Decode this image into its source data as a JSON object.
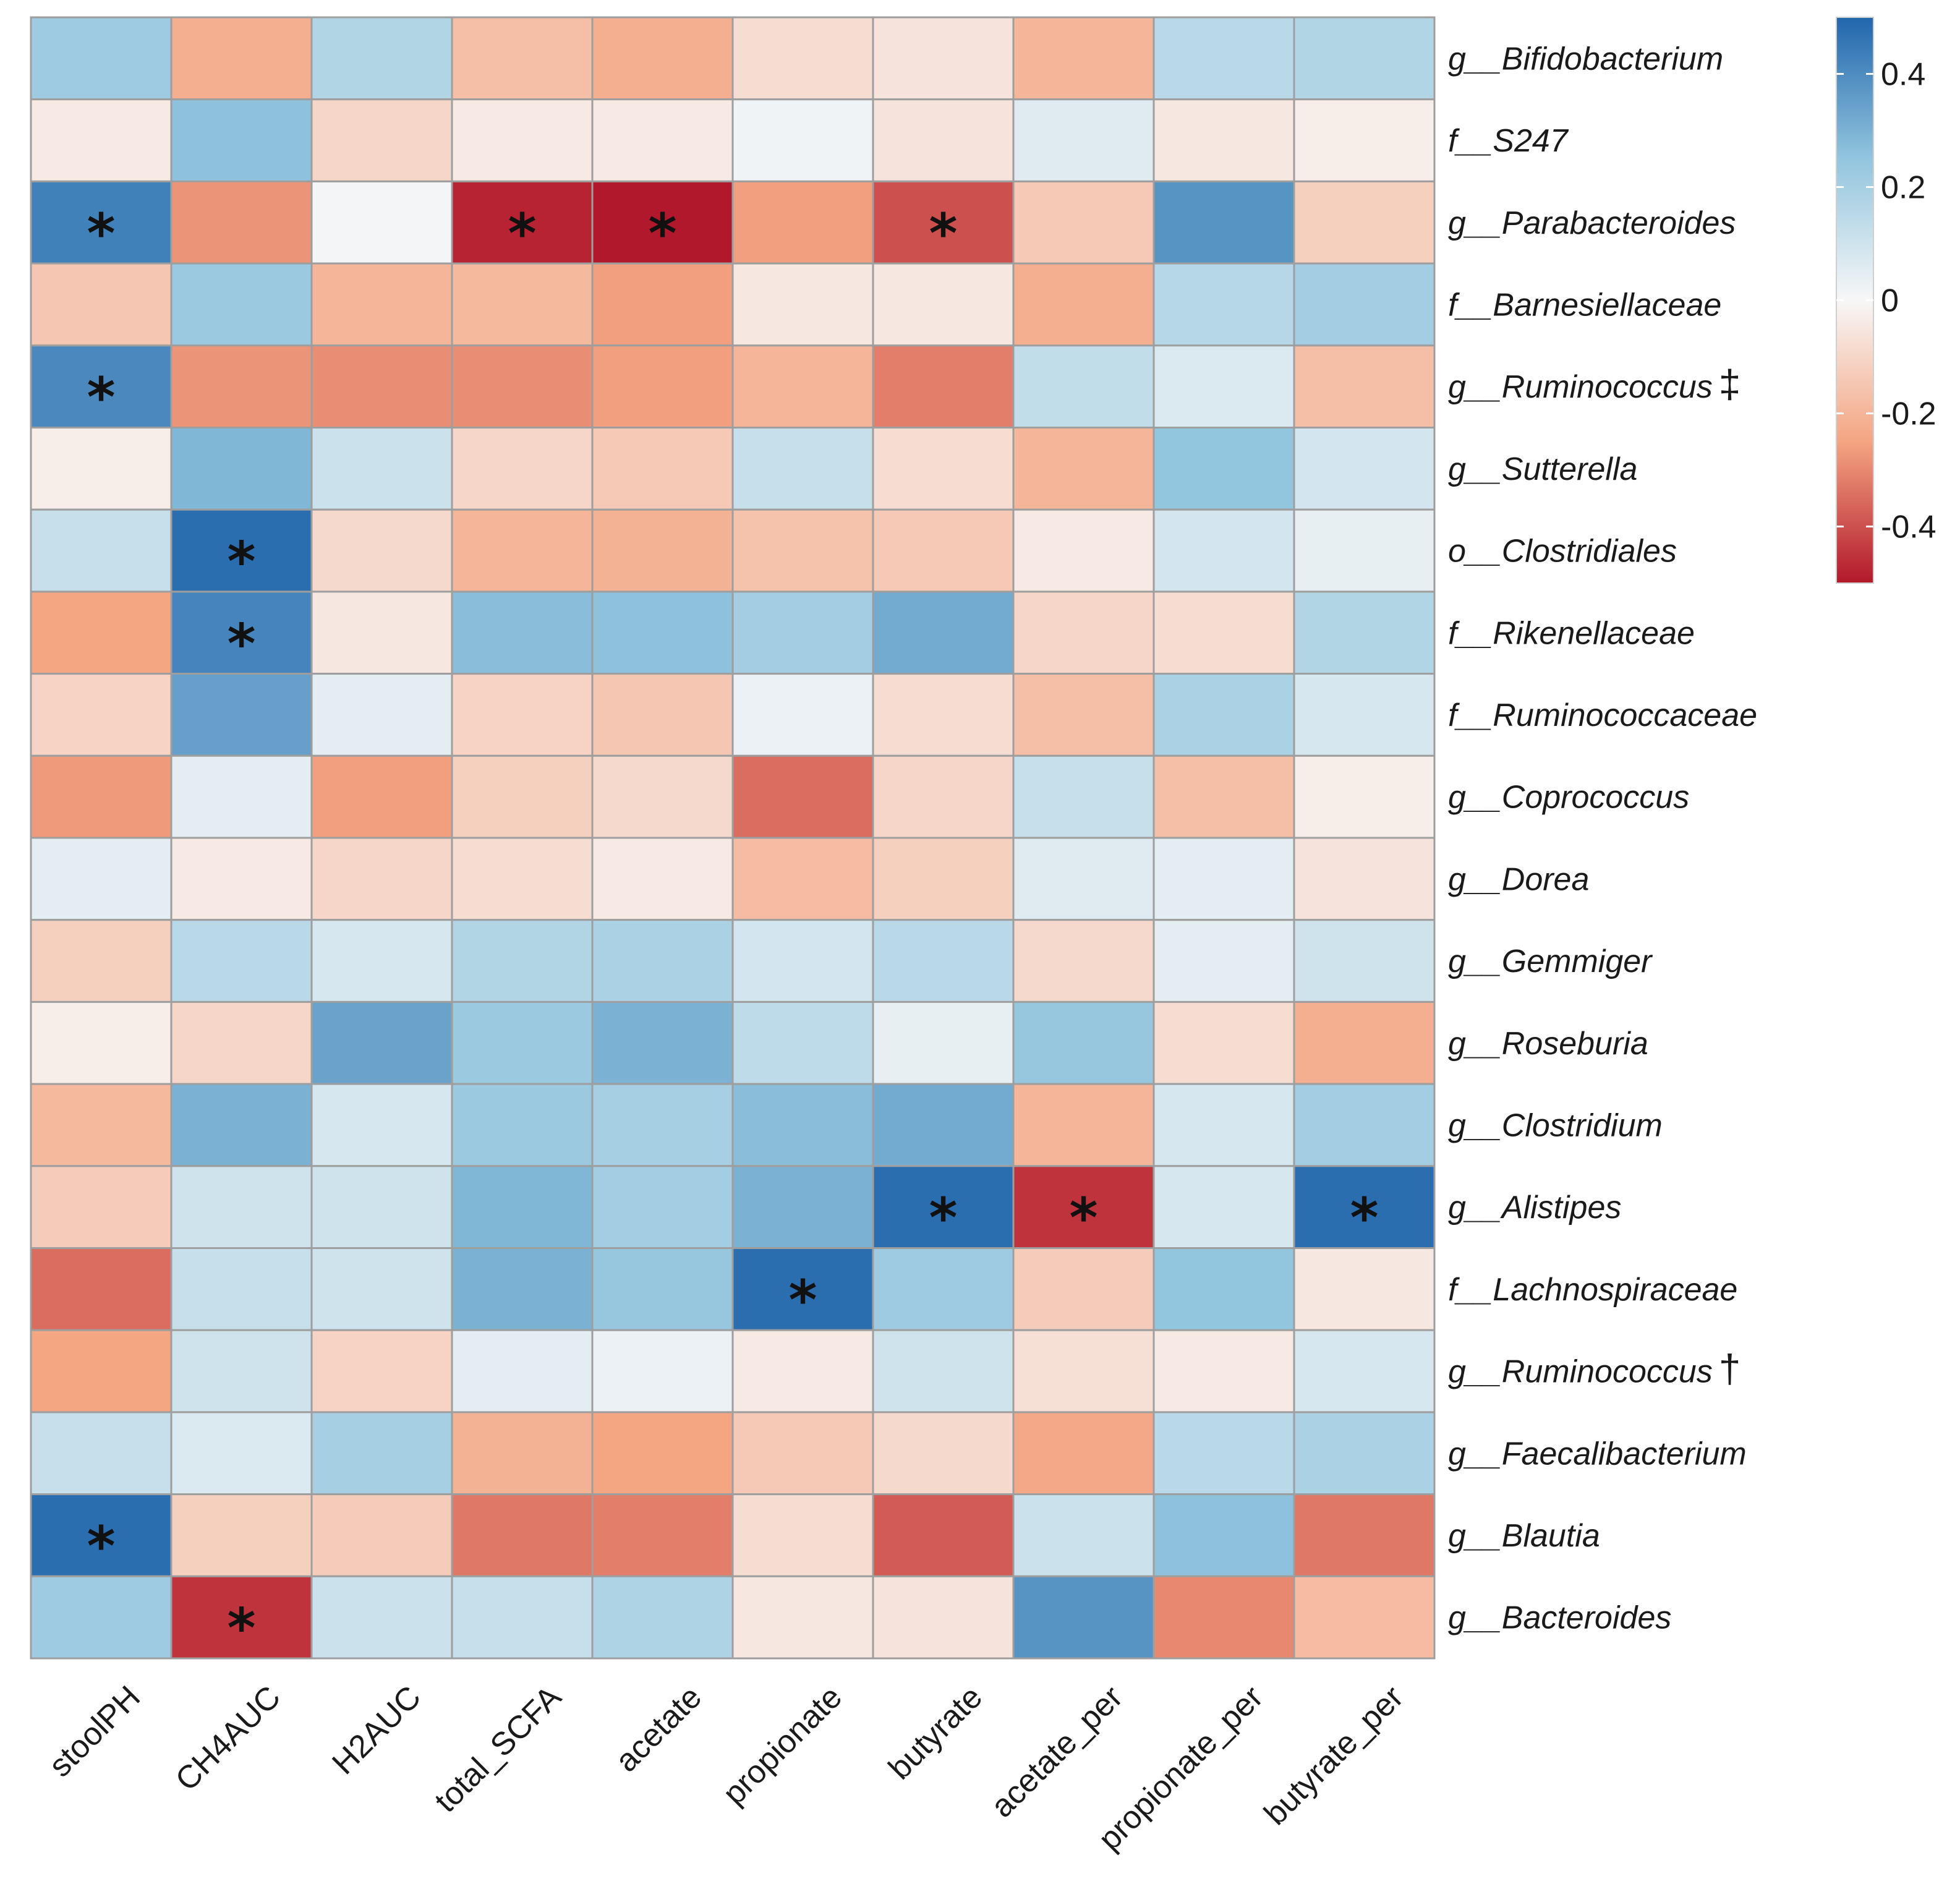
{
  "chart_data": {
    "type": "heatmap",
    "title": "",
    "colorscale": {
      "low": "#b2182b",
      "mid": "#f7f7f7",
      "high": "#2166ac",
      "min": -0.5,
      "max": 0.5
    },
    "colorbar_ticks": [
      {
        "value": 0.4,
        "label": "0.4"
      },
      {
        "value": 0.2,
        "label": "0.2"
      },
      {
        "value": 0,
        "label": "0"
      },
      {
        "value": -0.2,
        "label": "-0.2"
      },
      {
        "value": -0.4,
        "label": "-0.4"
      }
    ],
    "columns": [
      "stoolPH",
      "CH4AUC",
      "H2AUC",
      "total_SCFA",
      "acetate",
      "propionate",
      "butyrate",
      "acetate_per",
      "propionate_per",
      "butyrate_per"
    ],
    "rows": [
      {
        "label": "g__Bifidobacterium",
        "marker": "",
        "values": [
          0.22,
          -0.22,
          0.17,
          -0.17,
          -0.22,
          -0.08,
          -0.06,
          -0.2,
          0.15,
          0.17
        ],
        "significant": []
      },
      {
        "label": "f__S247",
        "marker": "",
        "values": [
          -0.04,
          0.26,
          -0.1,
          -0.04,
          -0.04,
          0.02,
          -0.06,
          0.06,
          -0.05,
          -0.03
        ],
        "significant": []
      },
      {
        "label": "g__Parabacteroides",
        "marker": "",
        "values": [
          0.43,
          -0.28,
          0.01,
          -0.48,
          -0.5,
          -0.26,
          -0.4,
          -0.14,
          0.38,
          -0.12
        ],
        "significant": [
          0,
          3,
          4,
          6
        ]
      },
      {
        "label": "f__Barnesiellaceae",
        "marker": "",
        "values": [
          -0.15,
          0.23,
          -0.2,
          -0.19,
          -0.26,
          -0.05,
          -0.05,
          -0.22,
          0.16,
          0.21
        ],
        "significant": []
      },
      {
        "label": "g__Ruminococcus",
        "marker": "‡",
        "values": [
          0.41,
          -0.28,
          -0.29,
          -0.29,
          -0.26,
          -0.2,
          -0.32,
          0.13,
          0.07,
          -0.17
        ],
        "significant": [
          0
        ]
      },
      {
        "label": "g__Sutterella",
        "marker": "",
        "values": [
          -0.03,
          0.29,
          0.11,
          -0.1,
          -0.14,
          0.12,
          -0.08,
          -0.2,
          0.25,
          0.09
        ],
        "significant": []
      },
      {
        "label": "o__Clostridiales",
        "marker": "",
        "values": [
          0.12,
          0.48,
          -0.09,
          -0.2,
          -0.21,
          -0.16,
          -0.14,
          -0.04,
          0.09,
          0.04
        ],
        "significant": [
          1
        ]
      },
      {
        "label": "f__Rikenellaceae",
        "marker": "",
        "values": [
          -0.25,
          0.42,
          -0.05,
          0.27,
          0.26,
          0.21,
          0.32,
          -0.1,
          -0.08,
          0.17
        ],
        "significant": [
          1
        ]
      },
      {
        "label": "f__Ruminococcaceae",
        "marker": "",
        "values": [
          -0.11,
          0.35,
          0.05,
          -0.11,
          -0.15,
          0.03,
          -0.08,
          -0.17,
          0.19,
          0.08
        ],
        "significant": []
      },
      {
        "label": "g__Coprococcus",
        "marker": "",
        "values": [
          -0.27,
          0.05,
          -0.26,
          -0.12,
          -0.09,
          -0.35,
          -0.1,
          0.12,
          -0.17,
          -0.03
        ],
        "significant": []
      },
      {
        "label": "g__Dorea",
        "marker": "",
        "values": [
          0.05,
          -0.04,
          -0.1,
          -0.08,
          -0.04,
          -0.18,
          -0.12,
          0.06,
          0.05,
          -0.06
        ],
        "significant": []
      },
      {
        "label": "g__Gemmiger",
        "marker": "",
        "values": [
          -0.12,
          0.15,
          0.08,
          0.17,
          0.19,
          0.09,
          0.15,
          -0.09,
          0.05,
          0.1
        ],
        "significant": []
      },
      {
        "label": "g__Roseburia",
        "marker": "",
        "values": [
          -0.03,
          -0.1,
          0.34,
          0.23,
          0.3,
          0.14,
          0.04,
          0.24,
          -0.08,
          -0.22
        ],
        "significant": []
      },
      {
        "label": "g__Clostridium",
        "marker": "",
        "values": [
          -0.19,
          0.3,
          0.08,
          0.23,
          0.2,
          0.27,
          0.32,
          -0.2,
          0.08,
          0.21
        ],
        "significant": []
      },
      {
        "label": "g__Alistipes",
        "marker": "",
        "values": [
          -0.13,
          0.1,
          0.1,
          0.29,
          0.21,
          0.3,
          0.48,
          -0.45,
          0.08,
          0.48
        ],
        "significant": [
          6,
          7,
          9
        ]
      },
      {
        "label": "f__Lachnospiraceae",
        "marker": "",
        "values": [
          -0.35,
          0.12,
          0.1,
          0.3,
          0.24,
          0.48,
          0.22,
          -0.13,
          0.25,
          -0.05
        ],
        "significant": [
          5
        ]
      },
      {
        "label": "g__Ruminococcus",
        "marker": "†",
        "values": [
          -0.25,
          0.1,
          -0.11,
          0.05,
          0.03,
          -0.04,
          0.1,
          -0.07,
          -0.04,
          0.08
        ],
        "significant": []
      },
      {
        "label": "g__Faecalibacterium",
        "marker": "",
        "values": [
          0.12,
          0.07,
          0.2,
          -0.21,
          -0.25,
          -0.14,
          -0.09,
          -0.24,
          0.15,
          0.19
        ],
        "significant": []
      },
      {
        "label": "g__Blautia",
        "marker": "",
        "values": [
          0.48,
          -0.12,
          -0.13,
          -0.33,
          -0.32,
          -0.08,
          -0.38,
          0.11,
          0.26,
          -0.33
        ],
        "significant": [
          0
        ]
      },
      {
        "label": "g__Bacteroides",
        "marker": "",
        "values": [
          0.22,
          -0.45,
          0.11,
          0.12,
          0.18,
          -0.05,
          -0.06,
          0.38,
          -0.3,
          -0.18
        ],
        "significant": [
          1
        ]
      }
    ],
    "significance_marker": "*",
    "xlabel": "",
    "ylabel": ""
  }
}
